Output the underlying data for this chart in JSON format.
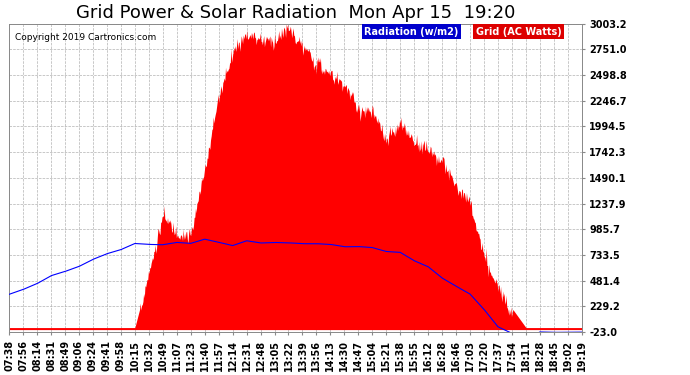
{
  "title": "Grid Power & Solar Radiation  Mon Apr 15  19:20",
  "copyright": "Copyright 2019 Cartronics.com",
  "legend_radiation": "Radiation (w/m2)",
  "legend_grid": "Grid (AC Watts)",
  "ymin": -23.0,
  "ymax": 3003.2,
  "yticks": [
    3003.2,
    2751.0,
    2498.8,
    2246.7,
    1994.5,
    1742.3,
    1490.1,
    1237.9,
    985.7,
    733.5,
    481.4,
    229.2,
    -23.0
  ],
  "fig_bg": "#ffffff",
  "plot_bg": "#ffffff",
  "radiation_color": "#ff0000",
  "blue_line_color": "#0000ff",
  "grid_color": "#aaaaaa",
  "title_fontsize": 14,
  "xtick_labels": [
    "07:38",
    "07:56",
    "08:14",
    "08:31",
    "08:49",
    "09:06",
    "09:24",
    "09:41",
    "09:58",
    "10:15",
    "10:32",
    "10:49",
    "11:07",
    "11:23",
    "11:40",
    "11:57",
    "12:14",
    "12:31",
    "12:48",
    "13:05",
    "13:22",
    "13:39",
    "13:56",
    "14:13",
    "14:30",
    "14:47",
    "15:04",
    "15:21",
    "15:38",
    "15:55",
    "16:12",
    "16:28",
    "16:46",
    "17:03",
    "17:20",
    "17:37",
    "17:54",
    "18:11",
    "18:28",
    "18:45",
    "19:02",
    "19:19"
  ],
  "n_points": 42
}
